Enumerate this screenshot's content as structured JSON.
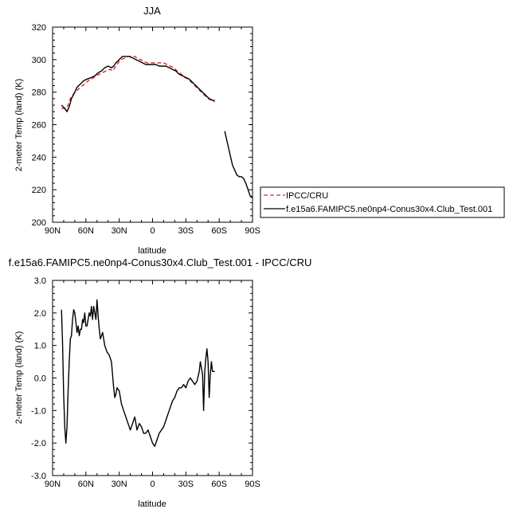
{
  "chart_data": [
    {
      "type": "line",
      "title": "JJA",
      "xlabel": "latitude",
      "ylabel": "2-meter Temp (land) (K)",
      "xlim": [
        90,
        -90
      ],
      "ylim": [
        200,
        320
      ],
      "xticks": [
        90,
        60,
        30,
        0,
        -30,
        -60,
        -90
      ],
      "xtick_labels": [
        "90N",
        "60N",
        "30N",
        "0",
        "30S",
        "60S",
        "90S"
      ],
      "yticks": [
        200,
        220,
        240,
        260,
        280,
        300,
        320
      ],
      "ytick_labels": [
        "200",
        "220",
        "240",
        "260",
        "280",
        "300",
        "320"
      ],
      "legend_position": "right",
      "series": [
        {
          "name": "IPCC/CRU",
          "color": "#d62728",
          "dash": "dashed",
          "segments": [
            [
              [
                82,
                270
              ],
              [
                78,
                270
              ],
              [
                76,
                272
              ],
              [
                74,
                276
              ],
              [
                71,
                279
              ],
              [
                68,
                281
              ],
              [
                65,
                283
              ],
              [
                61,
                285
              ],
              [
                58,
                287
              ],
              [
                55,
                288
              ],
              [
                51,
                290
              ],
              [
                48,
                291
              ],
              [
                45,
                292
              ],
              [
                42,
                293
              ],
              [
                38,
                294
              ],
              [
                36,
                293
              ],
              [
                34,
                295
              ],
              [
                32,
                297
              ],
              [
                30,
                299
              ],
              [
                28,
                300
              ],
              [
                25,
                301
              ],
              [
                22,
                302
              ],
              [
                19,
                302
              ],
              [
                16,
                302
              ],
              [
                14,
                301
              ],
              [
                11,
                300
              ],
              [
                8,
                299
              ],
              [
                5,
                298
              ],
              [
                2,
                298
              ],
              [
                -1,
                298
              ],
              [
                -4,
                298
              ],
              [
                -7,
                298
              ],
              [
                -10,
                298
              ],
              [
                -13,
                297
              ],
              [
                -16,
                296
              ],
              [
                -19,
                295
              ],
              [
                -22,
                293
              ],
              [
                -26,
                291
              ],
              [
                -29,
                289
              ],
              [
                -32,
                288
              ],
              [
                -35,
                286
              ],
              [
                -38,
                284
              ],
              [
                -41,
                282
              ],
              [
                -44,
                280
              ],
              [
                -47,
                278
              ],
              [
                -50,
                276
              ],
              [
                -53,
                275
              ],
              [
                -56,
                274
              ]
            ]
          ]
        },
        {
          "name": "f.e15a6.FAMIPC5.ne0np4-Conus30x4.Club_Test.001",
          "color": "#000000",
          "dash": "solid",
          "segments": [
            [
              [
                82,
                272
              ],
              [
                79,
                270
              ],
              [
                77,
                268
              ],
              [
                75,
                271
              ],
              [
                73,
                276
              ],
              [
                70,
                280
              ],
              [
                68,
                283
              ],
              [
                65,
                285
              ],
              [
                62,
                287
              ],
              [
                59,
                288
              ],
              [
                55,
                289
              ],
              [
                52,
                290
              ],
              [
                49,
                292
              ],
              [
                46,
                293
              ],
              [
                43,
                295
              ],
              [
                40,
                296
              ],
              [
                37,
                295
              ],
              [
                35,
                296
              ],
              [
                33,
                298
              ],
              [
                30,
                300
              ],
              [
                27,
                302
              ],
              [
                24,
                302
              ],
              [
                21,
                302
              ],
              [
                18,
                301
              ],
              [
                15,
                300
              ],
              [
                12,
                299
              ],
              [
                9,
                298
              ],
              [
                6,
                297
              ],
              [
                3,
                297
              ],
              [
                0,
                297
              ],
              [
                -3,
                297
              ],
              [
                -6,
                296
              ],
              [
                -9,
                296
              ],
              [
                -12,
                296
              ],
              [
                -15,
                295
              ],
              [
                -18,
                294
              ],
              [
                -21,
                293
              ],
              [
                -24,
                291
              ],
              [
                -27,
                290
              ],
              [
                -30,
                289
              ],
              [
                -33,
                288
              ],
              [
                -36,
                286
              ],
              [
                -39,
                284
              ],
              [
                -42,
                282
              ],
              [
                -45,
                280
              ],
              [
                -48,
                278
              ],
              [
                -51,
                276
              ],
              [
                -54,
                275
              ],
              [
                -56,
                275
              ]
            ],
            [
              [
                -65,
                256
              ],
              [
                -66,
                253
              ],
              [
                -68,
                247
              ],
              [
                -70,
                241
              ],
              [
                -72,
                235
              ],
              [
                -74,
                232
              ],
              [
                -76,
                229
              ],
              [
                -78,
                228
              ],
              [
                -80,
                228
              ],
              [
                -82,
                227
              ],
              [
                -84,
                224
              ],
              [
                -86,
                220
              ],
              [
                -88,
                216
              ],
              [
                -90,
                215
              ]
            ]
          ]
        }
      ]
    },
    {
      "type": "line",
      "title": "f.e15a6.FAMIPC5.ne0np4-Conus30x4.Club_Test.001 - IPCC/CRU",
      "xlabel": "latitude",
      "ylabel": "2-meter Temp (land) (K)",
      "xlim": [
        90,
        -90
      ],
      "ylim": [
        -3,
        3
      ],
      "xticks": [
        90,
        60,
        30,
        0,
        -30,
        -60,
        -90
      ],
      "xtick_labels": [
        "90N",
        "60N",
        "30N",
        "0",
        "30S",
        "60S",
        "90S"
      ],
      "yticks": [
        -3,
        -2,
        -1,
        0,
        1,
        2,
        3
      ],
      "ytick_labels": [
        "-3.0",
        "-2.0",
        "-1.0",
        "0.0",
        "1.0",
        "2.0",
        "3.0"
      ],
      "series": [
        {
          "color": "#000000",
          "values": [
            [
              82,
              2.1
            ],
            [
              81,
              1.1
            ],
            [
              80,
              -0.5
            ],
            [
              79,
              -1.5
            ],
            [
              78,
              -2.0
            ],
            [
              77,
              -1.5
            ],
            [
              76,
              -0.4
            ],
            [
              75,
              0.5
            ],
            [
              74,
              1.2
            ],
            [
              73,
              1.3
            ],
            [
              72,
              1.8
            ],
            [
              71,
              2.1
            ],
            [
              70,
              2.0
            ],
            [
              69,
              1.7
            ],
            [
              68,
              1.4
            ],
            [
              67,
              1.6
            ],
            [
              66,
              1.3
            ],
            [
              65,
              1.5
            ],
            [
              64,
              1.5
            ],
            [
              63,
              1.8
            ],
            [
              62,
              1.7
            ],
            [
              61,
              2.0
            ],
            [
              60,
              1.6
            ],
            [
              59,
              1.6
            ],
            [
              58,
              1.8
            ],
            [
              57,
              2.0
            ],
            [
              56,
              1.9
            ],
            [
              55,
              2.2
            ],
            [
              54,
              1.8
            ],
            [
              53,
              2.2
            ],
            [
              52,
              2.0
            ],
            [
              51,
              1.8
            ],
            [
              50,
              2.4
            ],
            [
              49,
              1.9
            ],
            [
              48,
              1.5
            ],
            [
              47,
              1.2
            ],
            [
              45,
              1.4
            ],
            [
              43,
              1.0
            ],
            [
              41,
              0.8
            ],
            [
              39,
              0.7
            ],
            [
              37,
              0.5
            ],
            [
              36,
              0.1
            ],
            [
              35,
              -0.3
            ],
            [
              34,
              -0.6
            ],
            [
              33,
              -0.5
            ],
            [
              32,
              -0.3
            ],
            [
              30,
              -0.4
            ],
            [
              28,
              -0.8
            ],
            [
              26,
              -1.0
            ],
            [
              24,
              -1.2
            ],
            [
              22,
              -1.4
            ],
            [
              20,
              -1.6
            ],
            [
              18,
              -1.4
            ],
            [
              16,
              -1.2
            ],
            [
              14,
              -1.6
            ],
            [
              12,
              -1.4
            ],
            [
              10,
              -1.5
            ],
            [
              8,
              -1.7
            ],
            [
              6,
              -1.7
            ],
            [
              4,
              -1.6
            ],
            [
              2,
              -1.8
            ],
            [
              0,
              -2.0
            ],
            [
              -2,
              -2.1
            ],
            [
              -4,
              -1.9
            ],
            [
              -6,
              -1.7
            ],
            [
              -8,
              -1.6
            ],
            [
              -10,
              -1.5
            ],
            [
              -12,
              -1.3
            ],
            [
              -14,
              -1.1
            ],
            [
              -16,
              -0.9
            ],
            [
              -18,
              -0.7
            ],
            [
              -20,
              -0.6
            ],
            [
              -22,
              -0.4
            ],
            [
              -24,
              -0.3
            ],
            [
              -26,
              -0.3
            ],
            [
              -28,
              -0.2
            ],
            [
              -30,
              -0.3
            ],
            [
              -32,
              -0.1
            ],
            [
              -34,
              0.0
            ],
            [
              -36,
              -0.1
            ],
            [
              -38,
              -0.2
            ],
            [
              -40,
              -0.1
            ],
            [
              -42,
              0.2
            ],
            [
              -43,
              0.5
            ],
            [
              -44,
              0.3
            ],
            [
              -45,
              0.1
            ],
            [
              -46,
              -1.0
            ],
            [
              -47,
              0.2
            ],
            [
              -48,
              0.6
            ],
            [
              -49,
              0.9
            ],
            [
              -50,
              0.5
            ],
            [
              -51,
              -0.6
            ],
            [
              -52,
              0.1
            ],
            [
              -53,
              0.5
            ],
            [
              -54,
              0.2
            ],
            [
              -56,
              0.2
            ]
          ]
        }
      ]
    }
  ]
}
